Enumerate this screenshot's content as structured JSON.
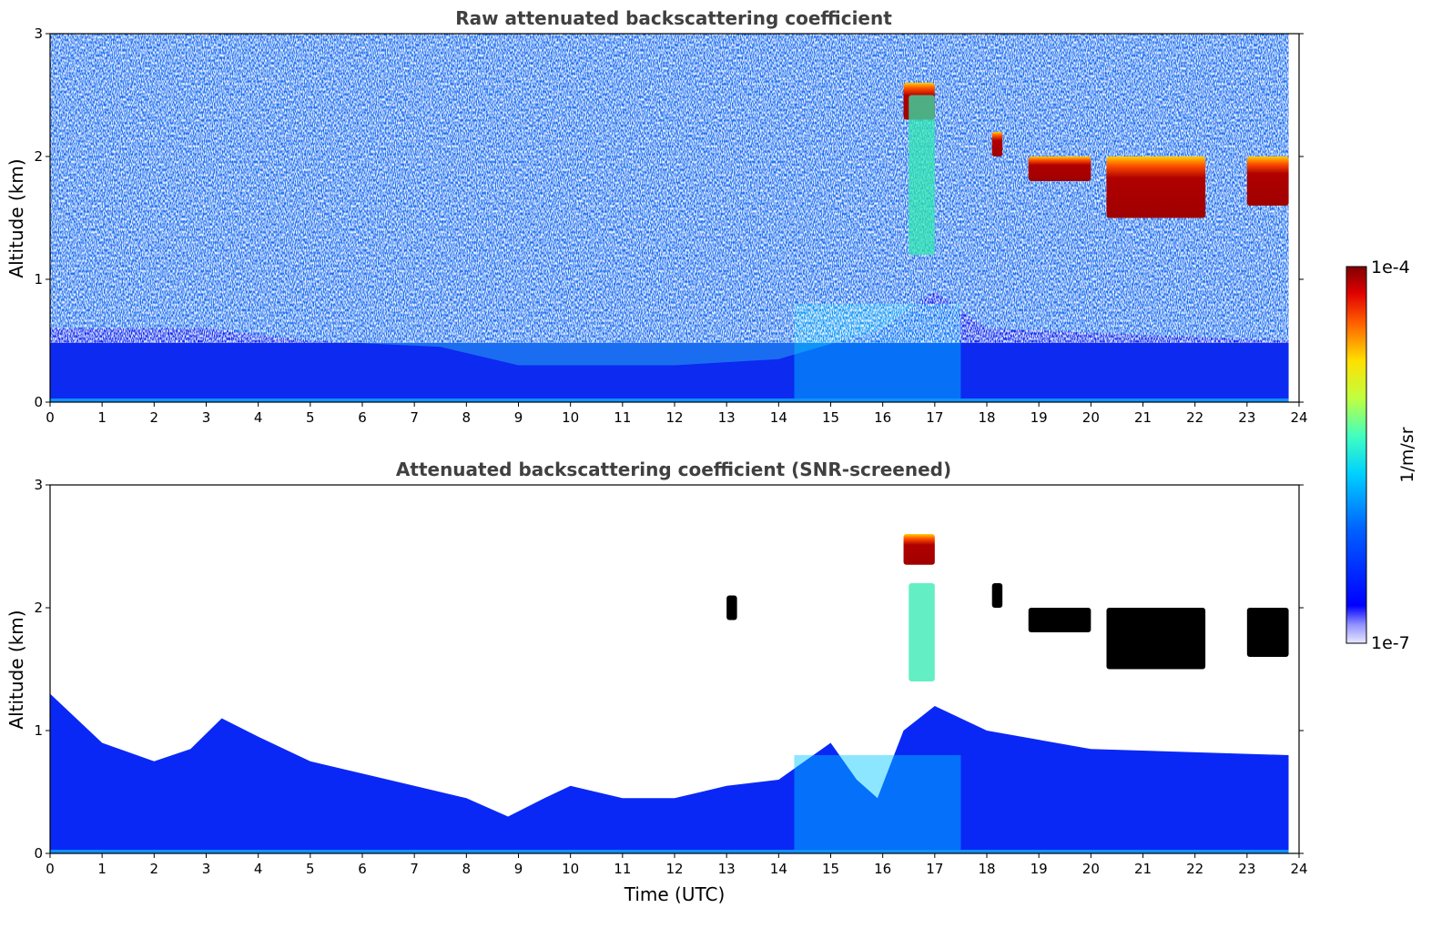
{
  "chart_data": [
    {
      "type": "heatmap",
      "title": "Raw attenuated backscattering coefficient",
      "xlabel": "",
      "ylabel": "Altitude (km)",
      "xlim": [
        0,
        24
      ],
      "ylim": [
        0,
        3
      ],
      "xticks": [
        "0",
        "1",
        "2",
        "3",
        "4",
        "5",
        "6",
        "7",
        "8",
        "9",
        "10",
        "11",
        "12",
        "13",
        "14",
        "15",
        "16",
        "17",
        "18",
        "19",
        "20",
        "21",
        "22",
        "23",
        "24"
      ],
      "yticks": [
        "0",
        "1",
        "2",
        "3"
      ],
      "data_extent_hours": 23.8,
      "boundary_layer_top_km": [
        [
          0,
          0.6
        ],
        [
          3,
          0.6
        ],
        [
          5,
          0.5
        ],
        [
          7.5,
          0.45
        ],
        [
          9,
          0.3
        ],
        [
          12,
          0.3
        ],
        [
          14,
          0.35
        ],
        [
          16,
          0.6
        ],
        [
          17,
          0.9
        ],
        [
          18,
          0.6
        ],
        [
          24,
          0.5
        ]
      ],
      "elevated_layers": [
        {
          "time": [
            16.4,
            17.0
          ],
          "altitude_km": [
            2.3,
            2.6
          ],
          "level": "high"
        },
        {
          "time": [
            16.5,
            17.0
          ],
          "altitude_km": [
            1.2,
            2.5
          ],
          "level": "moderate"
        },
        {
          "time": [
            18.1,
            18.3
          ],
          "altitude_km": [
            2.0,
            2.2
          ],
          "level": "high"
        },
        {
          "time": [
            18.8,
            20.0
          ],
          "altitude_km": [
            1.8,
            2.0
          ],
          "level": "high"
        },
        {
          "time": [
            20.3,
            22.2
          ],
          "altitude_km": [
            1.5,
            2.0
          ],
          "level": "high",
          "note_visual": "main cloud layer descending"
        },
        {
          "time": [
            23.0,
            23.8
          ],
          "altitude_km": [
            1.6,
            2.0
          ],
          "level": "high"
        }
      ]
    },
    {
      "type": "heatmap",
      "title": "Attenuated backscattering coefficient (SNR-screened)",
      "xlabel": "Time (UTC)",
      "ylabel": "Altitude (km)",
      "xlim": [
        0,
        24
      ],
      "ylim": [
        0,
        3
      ],
      "xticks": [
        "0",
        "1",
        "2",
        "3",
        "4",
        "5",
        "6",
        "7",
        "8",
        "9",
        "10",
        "11",
        "12",
        "13",
        "14",
        "15",
        "16",
        "17",
        "18",
        "19",
        "20",
        "21",
        "22",
        "23",
        "24"
      ],
      "yticks": [
        "0",
        "1",
        "2",
        "3"
      ],
      "data_extent_hours": 23.8,
      "boundary_layer_top_km": [
        [
          0,
          1.3
        ],
        [
          0.5,
          1.1
        ],
        [
          1,
          0.9
        ],
        [
          2,
          0.75
        ],
        [
          2.7,
          0.85
        ],
        [
          3.3,
          1.1
        ],
        [
          4,
          0.95
        ],
        [
          5,
          0.75
        ],
        [
          6,
          0.65
        ],
        [
          7,
          0.55
        ],
        [
          8,
          0.45
        ],
        [
          8.8,
          0.3
        ],
        [
          9.5,
          0.45
        ],
        [
          10,
          0.55
        ],
        [
          11,
          0.45
        ],
        [
          12,
          0.45
        ],
        [
          13,
          0.55
        ],
        [
          14,
          0.6
        ],
        [
          15,
          0.9
        ],
        [
          15.5,
          0.6
        ],
        [
          15.9,
          0.45
        ],
        [
          16.4,
          1.0
        ],
        [
          17,
          1.2
        ],
        [
          18,
          1.0
        ],
        [
          20,
          0.85
        ],
        [
          24,
          0.8
        ]
      ],
      "elevated_layers": [
        {
          "time": [
            16.4,
            17.0
          ],
          "altitude_km": [
            2.35,
            2.6
          ],
          "level": "high"
        },
        {
          "time": [
            16.5,
            17.0
          ],
          "altitude_km": [
            1.4,
            2.2
          ],
          "level": "moderate"
        },
        {
          "time": [
            13.0,
            13.2
          ],
          "altitude_km": [
            1.9,
            2.1
          ],
          "level": "saturated"
        },
        {
          "time": [
            18.1,
            18.3
          ],
          "altitude_km": [
            2.0,
            2.2
          ],
          "level": "saturated"
        },
        {
          "time": [
            18.8,
            20.0
          ],
          "altitude_km": [
            1.8,
            2.0
          ],
          "level": "saturated"
        },
        {
          "time": [
            20.3,
            22.2
          ],
          "altitude_km": [
            1.5,
            2.0
          ],
          "level": "saturated"
        },
        {
          "time": [
            23.0,
            23.8
          ],
          "altitude_km": [
            1.6,
            2.0
          ],
          "level": "saturated"
        }
      ]
    }
  ],
  "colorbar": {
    "label": "1/m/sr",
    "max_label": "1e-4",
    "min_label": "1e-7",
    "scale": "log",
    "colormap": "jet",
    "range": [
      1e-07,
      0.0001
    ]
  },
  "colors": {
    "low": "#0000ff",
    "boundary": "#1e64ff",
    "mid": "#00c8ff",
    "cloud": "#b40000",
    "saturated": "#000000",
    "title": "#404040"
  }
}
